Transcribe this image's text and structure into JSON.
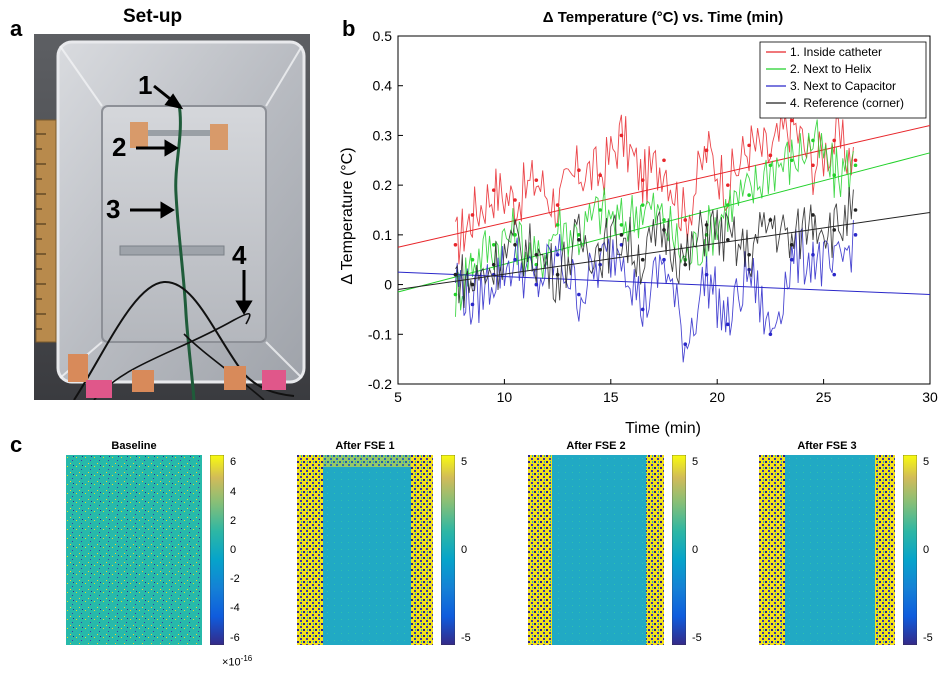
{
  "panel_a": {
    "letter": "a",
    "title": "Set-up",
    "markers": [
      "1",
      "2",
      "3",
      "4"
    ]
  },
  "panel_b": {
    "letter": "b"
  },
  "panel_c": {
    "letter": "c",
    "maps": [
      {
        "title": "Baseline",
        "ticks": [
          "6",
          "4",
          "2",
          "0",
          "-2",
          "-4",
          "-6"
        ],
        "scale_note": "×10",
        "scale_exp": "-16"
      },
      {
        "title": "After FSE 1",
        "ticks": [
          "5",
          "0",
          "-5"
        ]
      },
      {
        "title": "After FSE 2",
        "ticks": [
          "5",
          "0",
          "-5"
        ]
      },
      {
        "title": "After FSE 3",
        "ticks": [
          "5",
          "0",
          "-5"
        ]
      }
    ]
  },
  "chart_data": {
    "type": "line",
    "title": "Δ Temperature (°C) vs. Time (min)",
    "xlabel": "Time (min)",
    "ylabel": "Δ Temperature (°C)",
    "xlim": [
      5,
      30
    ],
    "ylim": [
      -0.2,
      0.5
    ],
    "xticks": [
      5,
      10,
      15,
      20,
      25,
      30
    ],
    "yticks": [
      -0.2,
      -0.1,
      0,
      0.1,
      0.2,
      0.3,
      0.4,
      0.5
    ],
    "legend_position": "top-right",
    "series": [
      {
        "name": "1. Inside catheter",
        "color": "#e8262b",
        "x": [
          7.7,
          8.5,
          9.5,
          10.5,
          11.5,
          12.5,
          13.5,
          14.5,
          15.5,
          16.5,
          17.5,
          18.5,
          19.5,
          20.5,
          21.5,
          22.5,
          23.5,
          24.5,
          25.5,
          26.5
        ],
        "y": [
          0.08,
          0.14,
          0.19,
          0.17,
          0.21,
          0.16,
          0.23,
          0.22,
          0.3,
          0.21,
          0.25,
          0.13,
          0.27,
          0.2,
          0.28,
          0.26,
          0.33,
          0.24,
          0.29,
          0.25
        ],
        "trend": [
          0.075,
          0.32
        ]
      },
      {
        "name": "2. Next to Helix",
        "color": "#22d12a",
        "x": [
          7.7,
          8.5,
          9.5,
          10.5,
          11.5,
          12.5,
          13.5,
          14.5,
          15.5,
          16.5,
          17.5,
          18.5,
          19.5,
          20.5,
          21.5,
          22.5,
          23.5,
          24.5,
          25.5,
          26.5
        ],
        "y": [
          -0.02,
          0.05,
          0.08,
          0.1,
          0.04,
          0.12,
          0.1,
          0.15,
          0.12,
          0.16,
          0.13,
          0.05,
          0.1,
          0.16,
          0.18,
          0.24,
          0.25,
          0.29,
          0.22,
          0.24
        ],
        "trend": [
          -0.015,
          0.265
        ]
      },
      {
        "name": "3. Next to Capacitor",
        "color": "#2a27c9",
        "x": [
          7.7,
          8.5,
          9.5,
          10.5,
          11.5,
          12.5,
          13.5,
          14.5,
          15.5,
          16.5,
          17.5,
          18.5,
          19.5,
          20.5,
          21.5,
          22.5,
          23.5,
          24.5,
          25.5,
          26.5
        ],
        "y": [
          0.02,
          -0.04,
          0.02,
          0.05,
          0.0,
          0.06,
          -0.02,
          0.04,
          0.08,
          -0.05,
          0.05,
          -0.12,
          0.02,
          -0.08,
          0.03,
          -0.1,
          0.05,
          0.06,
          0.02,
          0.1
        ],
        "trend": [
          0.025,
          -0.02
        ]
      },
      {
        "name": "4. Reference (corner)",
        "color": "#222222",
        "x": [
          7.7,
          8.5,
          9.5,
          10.5,
          11.5,
          12.5,
          13.5,
          14.5,
          15.5,
          16.5,
          17.5,
          18.5,
          19.5,
          20.5,
          21.5,
          22.5,
          23.5,
          24.5,
          25.5,
          26.5
        ],
        "y": [
          0.02,
          0.0,
          0.04,
          0.08,
          0.06,
          0.02,
          0.09,
          0.07,
          0.1,
          0.05,
          0.11,
          0.04,
          0.12,
          0.09,
          0.06,
          0.13,
          0.08,
          0.14,
          0.11,
          0.15
        ],
        "trend": [
          -0.01,
          0.145
        ]
      }
    ]
  }
}
